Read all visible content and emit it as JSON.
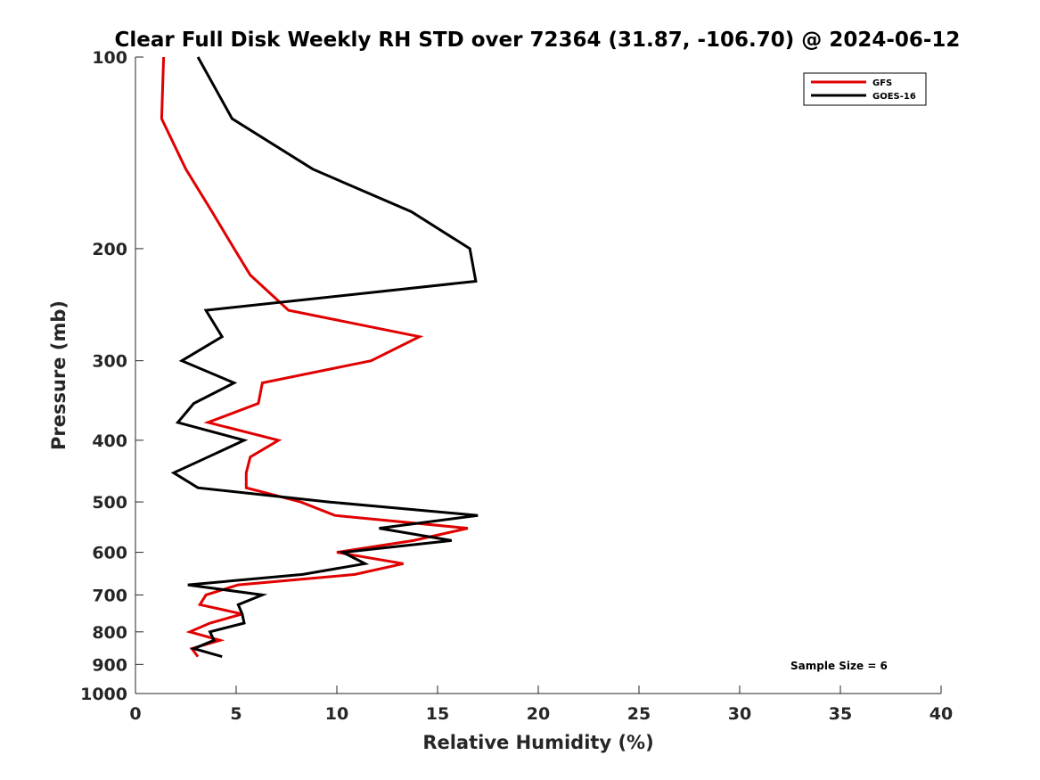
{
  "chart_data": {
    "type": "line",
    "title": "Clear Full Disk Weekly RH STD over 72364 (31.87, -106.70) @ 2024-06-12",
    "xlabel": "Relative Humidity (%)",
    "ylabel": "Pressure (mb)",
    "xlim": [
      0,
      40
    ],
    "ylim": [
      100,
      1000
    ],
    "yscale": "log",
    "yreversed": true,
    "xticks": [
      0,
      5,
      10,
      15,
      20,
      25,
      30,
      35,
      40
    ],
    "yticks": [
      100,
      200,
      300,
      400,
      500,
      600,
      700,
      800,
      900,
      1000
    ],
    "legend_position": "top-right",
    "annotation": "Sample Size = 6",
    "series": [
      {
        "name": "GFS",
        "color": "#e00000",
        "points": [
          [
            1.4,
            100
          ],
          [
            1.3,
            125
          ],
          [
            2.5,
            150
          ],
          [
            3.8,
            175
          ],
          [
            4.9,
            200
          ],
          [
            5.7,
            220
          ],
          [
            7.6,
            250
          ],
          [
            14.1,
            275
          ],
          [
            11.7,
            300
          ],
          [
            6.3,
            325
          ],
          [
            6.1,
            350
          ],
          [
            3.6,
            375
          ],
          [
            7.1,
            400
          ],
          [
            5.7,
            425
          ],
          [
            5.5,
            450
          ],
          [
            5.5,
            475
          ],
          [
            8.2,
            500
          ],
          [
            9.9,
            525
          ],
          [
            16.5,
            550
          ],
          [
            13.8,
            575
          ],
          [
            10.0,
            600
          ],
          [
            13.3,
            625
          ],
          [
            10.9,
            650
          ],
          [
            5.1,
            675
          ],
          [
            3.5,
            700
          ],
          [
            3.2,
            725
          ],
          [
            5.3,
            750
          ],
          [
            3.7,
            775
          ],
          [
            2.7,
            800
          ],
          [
            4.2,
            825
          ],
          [
            2.8,
            850
          ],
          [
            3.1,
            875
          ]
        ]
      },
      {
        "name": "GOES-16",
        "color": "#000000",
        "points": [
          [
            3.1,
            100
          ],
          [
            4.8,
            125
          ],
          [
            8.8,
            150
          ],
          [
            13.7,
            175
          ],
          [
            16.6,
            200
          ],
          [
            16.9,
            225
          ],
          [
            3.5,
            250
          ],
          [
            4.3,
            275
          ],
          [
            2.3,
            300
          ],
          [
            4.9,
            325
          ],
          [
            2.9,
            350
          ],
          [
            2.1,
            375
          ],
          [
            5.4,
            400
          ],
          [
            3.6,
            425
          ],
          [
            1.9,
            450
          ],
          [
            3.1,
            475
          ],
          [
            9.6,
            500
          ],
          [
            17.0,
            525
          ],
          [
            12.1,
            550
          ],
          [
            15.7,
            575
          ],
          [
            10.3,
            600
          ],
          [
            11.4,
            625
          ],
          [
            8.3,
            650
          ],
          [
            2.6,
            675
          ],
          [
            6.3,
            700
          ],
          [
            5.1,
            725
          ],
          [
            5.3,
            750
          ],
          [
            5.4,
            775
          ],
          [
            3.7,
            800
          ],
          [
            3.9,
            825
          ],
          [
            2.9,
            850
          ],
          [
            4.3,
            875
          ]
        ]
      }
    ]
  }
}
